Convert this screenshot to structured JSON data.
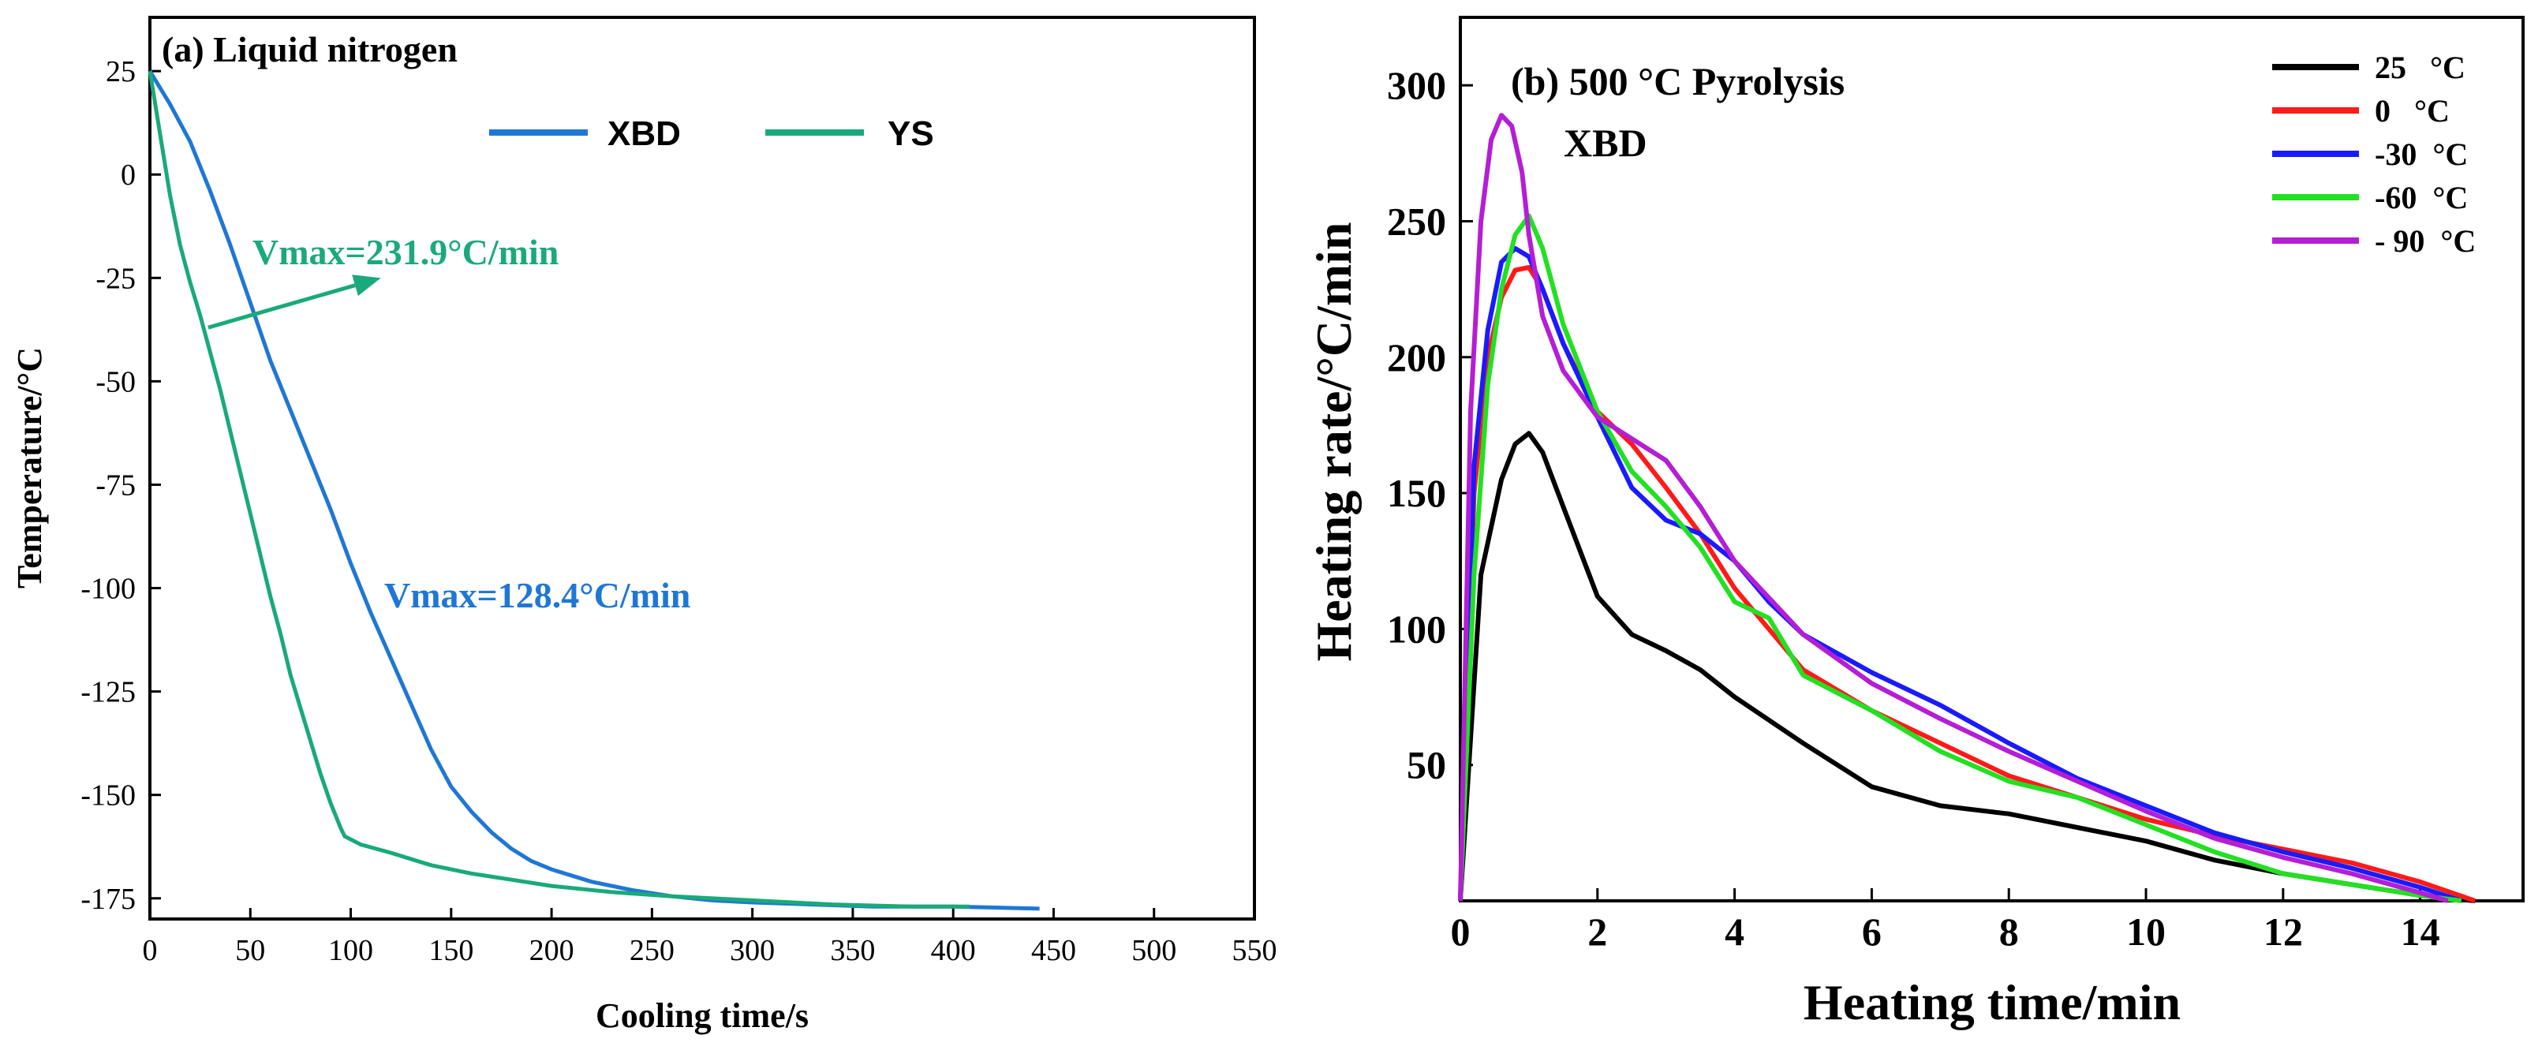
{
  "chart_data": [
    {
      "panel": "a",
      "type": "line",
      "title": "(a) Liquid nitrogen",
      "xlabel": "Cooling time/s",
      "ylabel": "Temperature/°C",
      "xlim": [
        0,
        550
      ],
      "ylim": [
        -180,
        38
      ],
      "xticks": [
        0,
        50,
        100,
        150,
        200,
        250,
        300,
        350,
        400,
        450,
        500,
        550
      ],
      "yticks": [
        25,
        0,
        -25,
        -50,
        -75,
        -100,
        -125,
        -150,
        -175
      ],
      "legend_position": "top-center",
      "series": [
        {
          "name": "XBD",
          "color": "#1f77d4",
          "x": [
            0,
            10,
            20,
            30,
            40,
            50,
            60,
            70,
            80,
            90,
            100,
            110,
            120,
            130,
            140,
            150,
            160,
            170,
            180,
            190,
            200,
            220,
            240,
            260,
            280,
            300,
            330,
            360,
            400,
            443
          ],
          "y": [
            25,
            17,
            8,
            -4,
            -17,
            -31,
            -45,
            -57,
            -69,
            -81,
            -94,
            -106,
            -117,
            -128,
            -139,
            -148,
            -154,
            -159,
            -163,
            -166,
            -168,
            -171,
            -173,
            -174.5,
            -175.5,
            -176,
            -176.5,
            -177,
            -177,
            -177.5
          ]
        },
        {
          "name": "YS",
          "color": "#1aa97a",
          "x": [
            0,
            5,
            10,
            15,
            20,
            25,
            30,
            35,
            40,
            45,
            50,
            55,
            60,
            65,
            70,
            75,
            80,
            85,
            90,
            95,
            97,
            105,
            120,
            140,
            160,
            180,
            200,
            230,
            260,
            300,
            340,
            380,
            408
          ],
          "y": [
            25,
            10,
            -5,
            -17,
            -26,
            -34,
            -43,
            -52,
            -62,
            -72,
            -82,
            -92,
            -102,
            -111,
            -121,
            -129,
            -137,
            -145,
            -152,
            -158,
            -160,
            -162,
            -164,
            -167,
            -169,
            -170.5,
            -172,
            -173.5,
            -174.5,
            -175.5,
            -176.5,
            -177,
            -177
          ]
        }
      ],
      "annotations": [
        {
          "text": "Vmax=231.9°C/min",
          "color": "#1aa97a",
          "arrow_from": [
            29,
            -37
          ],
          "arrow_to": [
            115,
            -25
          ]
        },
        {
          "text": "Vmax=128.4°C/min",
          "color": "#1f77d4"
        }
      ]
    },
    {
      "panel": "b",
      "type": "line",
      "title": "(b) 500 °C Pyrolysis",
      "subtitle": "XBD",
      "xlabel": "Heating time/min",
      "ylabel": "Heating rate/°C/min",
      "xlim": [
        0,
        15.5
      ],
      "ylim": [
        0,
        325
      ],
      "xticks": [
        0,
        2,
        4,
        6,
        8,
        10,
        12,
        14
      ],
      "yticks": [
        50,
        100,
        150,
        200,
        250,
        300
      ],
      "legend_position": "top-right",
      "series": [
        {
          "name": "25   °C",
          "color": "#000000",
          "x": [
            0,
            0.3,
            0.6,
            0.8,
            1.0,
            1.2,
            1.5,
            2.0,
            2.5,
            3.0,
            3.5,
            4.0,
            5.0,
            6.0,
            7.0,
            8.0,
            9.0,
            10.0,
            11.0,
            12.0,
            13.0,
            14.0,
            14.8
          ],
          "y": [
            0,
            120,
            155,
            168,
            172,
            165,
            145,
            112,
            98,
            92,
            85,
            75,
            58,
            42,
            35,
            32,
            27,
            22,
            15,
            10,
            6,
            2,
            0
          ]
        },
        {
          "name": "0   °C",
          "color": "#ff1a1a",
          "x": [
            0,
            0.2,
            0.4,
            0.6,
            0.8,
            1.0,
            1.2,
            1.5,
            2.0,
            2.5,
            3.0,
            3.5,
            4.0,
            5.0,
            6.0,
            7.0,
            8.0,
            9.0,
            10.0,
            11.0,
            12.0,
            13.0,
            14.0,
            14.8
          ],
          "y": [
            0,
            150,
            200,
            222,
            232,
            233,
            225,
            205,
            180,
            168,
            152,
            135,
            115,
            85,
            70,
            58,
            46,
            38,
            30,
            24,
            19,
            14,
            7,
            0
          ]
        },
        {
          "name": "-30  °C",
          "color": "#1a1aff",
          "x": [
            0,
            0.2,
            0.4,
            0.6,
            0.8,
            1.0,
            1.2,
            1.5,
            2.0,
            2.5,
            3.0,
            3.5,
            4.0,
            4.5,
            5.0,
            6.0,
            7.0,
            8.0,
            9.0,
            10.0,
            11.0,
            12.0,
            13.0,
            14.0,
            14.6
          ],
          "y": [
            0,
            160,
            210,
            235,
            240,
            237,
            225,
            205,
            178,
            152,
            140,
            135,
            125,
            110,
            98,
            84,
            72,
            58,
            45,
            35,
            25,
            18,
            12,
            5,
            0
          ]
        },
        {
          "name": "-60  °C",
          "color": "#22e022",
          "x": [
            0,
            0.2,
            0.4,
            0.6,
            0.8,
            1.0,
            1.2,
            1.5,
            2.0,
            2.5,
            3.0,
            3.5,
            4.0,
            4.5,
            5.0,
            6.0,
            7.0,
            8.0,
            9.0,
            10.0,
            11.0,
            12.0,
            13.0,
            14.0,
            14.6
          ],
          "y": [
            0,
            120,
            190,
            225,
            245,
            252,
            240,
            212,
            180,
            158,
            145,
            130,
            110,
            104,
            83,
            70,
            55,
            44,
            38,
            28,
            18,
            10,
            6,
            2,
            0
          ]
        },
        {
          "name": "- 90  °C",
          "color": "#b41ed4",
          "x": [
            0,
            0.15,
            0.3,
            0.45,
            0.6,
            0.75,
            0.9,
            1.0,
            1.2,
            1.5,
            2.0,
            2.5,
            3.0,
            3.5,
            4.0,
            5.0,
            6.0,
            7.0,
            8.0,
            9.0,
            10.0,
            11.0,
            12.0,
            13.0,
            14.0,
            14.4
          ],
          "y": [
            0,
            180,
            250,
            280,
            289,
            285,
            268,
            245,
            215,
            195,
            178,
            170,
            162,
            145,
            125,
            98,
            80,
            67,
            55,
            44,
            33,
            23,
            16,
            10,
            3,
            0
          ]
        }
      ]
    }
  ]
}
